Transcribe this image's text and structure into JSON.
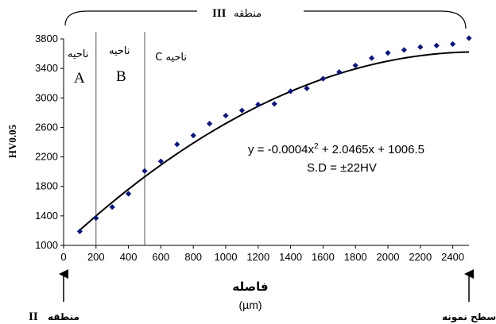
{
  "chart_data": {
    "type": "scatter",
    "ylabel": "HV0.05",
    "xlabel": "فاصله",
    "xunit": "(µm)",
    "xlim": [
      0,
      2500
    ],
    "ylim": [
      1000,
      3800
    ],
    "xticks": [
      0,
      200,
      400,
      600,
      800,
      1000,
      1200,
      1400,
      1600,
      1800,
      2000,
      2200,
      2400
    ],
    "yticks": [
      1000,
      1400,
      1800,
      2200,
      2600,
      3000,
      3400,
      3800
    ],
    "grid": false,
    "points": [
      {
        "x": 100,
        "y": 1190
      },
      {
        "x": 200,
        "y": 1370
      },
      {
        "x": 300,
        "y": 1520
      },
      {
        "x": 400,
        "y": 1700
      },
      {
        "x": 500,
        "y": 2010
      },
      {
        "x": 600,
        "y": 2140
      },
      {
        "x": 700,
        "y": 2370
      },
      {
        "x": 800,
        "y": 2490
      },
      {
        "x": 900,
        "y": 2650
      },
      {
        "x": 1000,
        "y": 2760
      },
      {
        "x": 1100,
        "y": 2830
      },
      {
        "x": 1200,
        "y": 2910
      },
      {
        "x": 1300,
        "y": 2920
      },
      {
        "x": 1400,
        "y": 3090
      },
      {
        "x": 1500,
        "y": 3130
      },
      {
        "x": 1600,
        "y": 3260
      },
      {
        "x": 1700,
        "y": 3350
      },
      {
        "x": 1800,
        "y": 3440
      },
      {
        "x": 1900,
        "y": 3540
      },
      {
        "x": 2000,
        "y": 3610
      },
      {
        "x": 2100,
        "y": 3650
      },
      {
        "x": 2200,
        "y": 3690
      },
      {
        "x": 2300,
        "y": 3710
      },
      {
        "x": 2400,
        "y": 3730
      },
      {
        "x": 2500,
        "y": 3810
      }
    ],
    "fit": {
      "a": -0.0004,
      "b": 2.0465,
      "c": 1006.5,
      "x_range": [
        100,
        2500
      ],
      "equation_prefix": "y = -0.0004x",
      "equation_suffix": " + 2.0465x + 1006.5",
      "sd": "S.D = ±22HV"
    },
    "region_boundaries_x": [
      200,
      500
    ],
    "regions": [
      {
        "word": "ناحیه",
        "letter": "A"
      },
      {
        "word": "ناحیه",
        "letter": "B"
      },
      {
        "word": "ناحیه C",
        "letter": ""
      }
    ],
    "zone_top": {
      "word": "منطقه",
      "roman": "III"
    },
    "zone_left": {
      "word": "منطقه",
      "roman": "II"
    },
    "zone_right": "سطح نمونه",
    "superscript": "2"
  }
}
